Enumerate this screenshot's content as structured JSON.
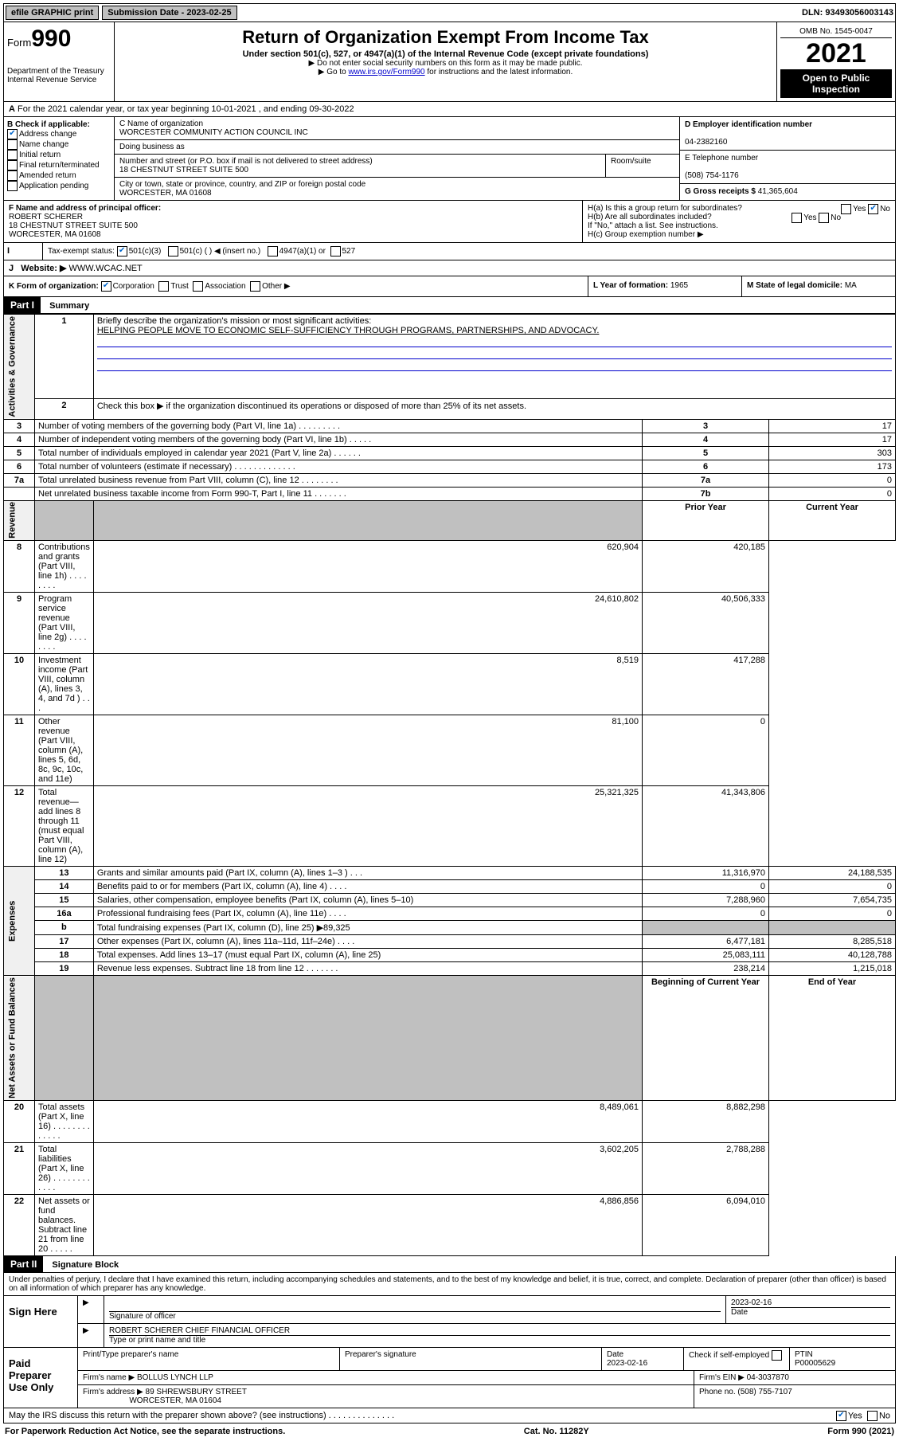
{
  "topbar": {
    "efile": "efile GRAPHIC print",
    "submission_label": "Submission Date - 2023-02-25",
    "dln": "DLN: 93493056003143"
  },
  "header": {
    "form_prefix": "Form",
    "form_number": "990",
    "dept": "Department of the Treasury\nInternal Revenue Service",
    "title": "Return of Organization Exempt From Income Tax",
    "subtitle": "Under section 501(c), 527, or 4947(a)(1) of the Internal Revenue Code (except private foundations)",
    "note1": "▶ Do not enter social security numbers on this form as it may be made public.",
    "note2_pre": "▶ Go to ",
    "note2_link": "www.irs.gov/Form990",
    "note2_post": " for instructions and the latest information.",
    "omb": "OMB No. 1545-0047",
    "year": "2021",
    "open": "Open to Public Inspection"
  },
  "periodA": "For the 2021 calendar year, or tax year beginning 10-01-2021   , and ending 09-30-2022",
  "boxB": {
    "label": "B Check if applicable:",
    "addr_change": "Address change",
    "name_change": "Name change",
    "initial": "Initial return",
    "final": "Final return/terminated",
    "amended": "Amended return",
    "app_pending": "Application pending"
  },
  "boxC": {
    "name_label": "C Name of organization",
    "name": "WORCESTER COMMUNITY ACTION COUNCIL INC",
    "dba_label": "Doing business as",
    "street_label": "Number and street (or P.O. box if mail is not delivered to street address)",
    "room_label": "Room/suite",
    "street": "18 CHESTNUT STREET SUITE 500",
    "city_label": "City or town, state or province, country, and ZIP or foreign postal code",
    "city": "WORCESTER, MA  01608"
  },
  "boxD": {
    "label": "D Employer identification number",
    "value": "04-2382160"
  },
  "boxE": {
    "label": "E Telephone number",
    "value": "(508) 754-1176"
  },
  "boxG": {
    "label": "G Gross receipts $",
    "value": "41,365,604"
  },
  "boxF": {
    "label": "F Name and address of principal officer:",
    "name": "ROBERT SCHERER",
    "addr1": "18 CHESTNUT STREET SUITE 500",
    "addr2": "WORCESTER, MA  01608"
  },
  "boxH": {
    "a_label": "H(a)  Is this a group return for subordinates?",
    "b_label": "H(b)  Are all subordinates included?",
    "b_note": "If \"No,\" attach a list. See instructions.",
    "c_label": "H(c)  Group exemption number ▶",
    "yes": "Yes",
    "no": "No"
  },
  "boxI": {
    "label": "Tax-exempt status:",
    "c3": "501(c)(3)",
    "c": "501(c) (  ) ◀ (insert no.)",
    "a1": "4947(a)(1) or",
    "s527": "527"
  },
  "boxJ": {
    "label": "Website: ▶",
    "value": "WWW.WCAC.NET"
  },
  "boxK": {
    "label": "K Form of organization:",
    "corp": "Corporation",
    "trust": "Trust",
    "assoc": "Association",
    "other": "Other ▶"
  },
  "boxL": {
    "label": "L Year of formation:",
    "value": "1965"
  },
  "boxM": {
    "label": "M State of legal domicile:",
    "value": "MA"
  },
  "part1": {
    "header": "Part I",
    "title": "Summary",
    "l1_label": "Briefly describe the organization's mission or most significant activities:",
    "l1_text": "HELPING PEOPLE MOVE TO ECONOMIC SELF-SUFFICIENCY THROUGH PROGRAMS, PARTNERSHIPS, AND ADVOCACY.",
    "l2": "Check this box ▶      if the organization discontinued its operations or disposed of more than 25% of its net assets.",
    "rows_gov": [
      {
        "n": "3",
        "label": "Number of voting members of the governing body (Part VI, line 1a)  .   .   .   .   .   .   .   .   .",
        "box": "3",
        "val": "17"
      },
      {
        "n": "4",
        "label": "Number of independent voting members of the governing body (Part VI, line 1b)  .   .   .   .   .",
        "box": "4",
        "val": "17"
      },
      {
        "n": "5",
        "label": "Total number of individuals employed in calendar year 2021 (Part V, line 2a)  .   .   .   .   .   .",
        "box": "5",
        "val": "303"
      },
      {
        "n": "6",
        "label": "Total number of volunteers (estimate if necessary)   .   .   .   .   .   .   .   .   .   .   .   .   .",
        "box": "6",
        "val": "173"
      },
      {
        "n": "7a",
        "label": "Total unrelated business revenue from Part VIII, column (C), line 12  .   .   .   .   .   .   .   .",
        "box": "7a",
        "val": "0"
      },
      {
        "n": "",
        "label": "Net unrelated business taxable income from Form 990-T, Part I, line 11  .   .   .   .   .   .   .",
        "box": "7b",
        "val": "0"
      }
    ],
    "col_prior": "Prior Year",
    "col_current": "Current Year",
    "rows_rev": [
      {
        "n": "8",
        "label": "Contributions and grants (Part VIII, line 1h)   .   .   .   .   .   .   .   .",
        "p": "620,904",
        "c": "420,185"
      },
      {
        "n": "9",
        "label": "Program service revenue (Part VIII, line 2g)   .   .   .   .   .   .   .   .",
        "p": "24,610,802",
        "c": "40,506,333"
      },
      {
        "n": "10",
        "label": "Investment income (Part VIII, column (A), lines 3, 4, and 7d )   .   .   .",
        "p": "8,519",
        "c": "417,288"
      },
      {
        "n": "11",
        "label": "Other revenue (Part VIII, column (A), lines 5, 6d, 8c, 9c, 10c, and 11e)",
        "p": "81,100",
        "c": "0"
      },
      {
        "n": "12",
        "label": "Total revenue—add lines 8 through 11 (must equal Part VIII, column (A), line 12)",
        "p": "25,321,325",
        "c": "41,343,806"
      }
    ],
    "rows_exp": [
      {
        "n": "13",
        "label": "Grants and similar amounts paid (Part IX, column (A), lines 1–3 )   .   .   .",
        "p": "11,316,970",
        "c": "24,188,535"
      },
      {
        "n": "14",
        "label": "Benefits paid to or for members (Part IX, column (A), line 4)  .   .   .   .",
        "p": "0",
        "c": "0"
      },
      {
        "n": "15",
        "label": "Salaries, other compensation, employee benefits (Part IX, column (A), lines 5–10)",
        "p": "7,288,960",
        "c": "7,654,735"
      },
      {
        "n": "16a",
        "label": "Professional fundraising fees (Part IX, column (A), line 11e)  .   .   .   .",
        "p": "0",
        "c": "0"
      },
      {
        "n": "b",
        "label": "Total fundraising expenses (Part IX, column (D), line 25) ▶89,325",
        "p": "",
        "c": "",
        "gray": true
      },
      {
        "n": "17",
        "label": "Other expenses (Part IX, column (A), lines 11a–11d, 11f–24e)  .   .   .   .",
        "p": "6,477,181",
        "c": "8,285,518"
      },
      {
        "n": "18",
        "label": "Total expenses. Add lines 13–17 (must equal Part IX, column (A), line 25)",
        "p": "25,083,111",
        "c": "40,128,788"
      },
      {
        "n": "19",
        "label": "Revenue less expenses. Subtract line 18 from line 12  .   .   .   .   .   .   .",
        "p": "238,214",
        "c": "1,215,018"
      }
    ],
    "col_beg": "Beginning of Current Year",
    "col_end": "End of Year",
    "rows_net": [
      {
        "n": "20",
        "label": "Total assets (Part X, line 16)  .   .   .   .   .   .   .   .   .   .   .   .   .",
        "p": "8,489,061",
        "c": "8,882,298"
      },
      {
        "n": "21",
        "label": "Total liabilities (Part X, line 26)  .   .   .   .   .   .   .   .   .   .   .   .",
        "p": "3,602,205",
        "c": "2,788,288"
      },
      {
        "n": "22",
        "label": "Net assets or fund balances. Subtract line 21 from line 20  .   .   .   .   .",
        "p": "4,886,856",
        "c": "6,094,010"
      }
    ],
    "side_gov": "Activities & Governance",
    "side_rev": "Revenue",
    "side_exp": "Expenses",
    "side_net": "Net Assets or Fund Balances"
  },
  "part2": {
    "header": "Part II",
    "title": "Signature Block",
    "decl": "Under penalties of perjury, I declare that I have examined this return, including accompanying schedules and statements, and to the best of my knowledge and belief, it is true, correct, and complete. Declaration of preparer (other than officer) is based on all information of which preparer has any knowledge.",
    "sign_here": "Sign Here",
    "sig_officer": "Signature of officer",
    "sig_date": "2023-02-16",
    "date_label": "Date",
    "officer_name": "ROBERT SCHERER  CHIEF FINANCIAL OFFICER",
    "officer_label": "Type or print name and title",
    "paid": "Paid Preparer Use Only",
    "prep_name_label": "Print/Type preparer's name",
    "prep_sig_label": "Preparer's signature",
    "prep_date_label": "Date",
    "prep_date": "2023-02-16",
    "self_emp": "Check       if self-employed",
    "ptin_label": "PTIN",
    "ptin": "P00005629",
    "firm_name_label": "Firm's name    ▶",
    "firm_name": "BOLLUS LYNCH LLP",
    "firm_ein_label": "Firm's EIN ▶",
    "firm_ein": "04-3037870",
    "firm_addr_label": "Firm's address ▶",
    "firm_addr1": "89 SHREWSBURY STREET",
    "firm_addr2": "WORCESTER, MA  01604",
    "firm_phone_label": "Phone no.",
    "firm_phone": "(508) 755-7107",
    "discuss": "May the IRS discuss this return with the preparer shown above? (see instructions)   .   .   .   .   .   .   .   .   .   .   .   .   .   .",
    "yes": "Yes",
    "no": "No"
  },
  "footer": {
    "left": "For Paperwork Reduction Act Notice, see the separate instructions.",
    "mid": "Cat. No. 11282Y",
    "right": "Form 990 (2021)"
  }
}
